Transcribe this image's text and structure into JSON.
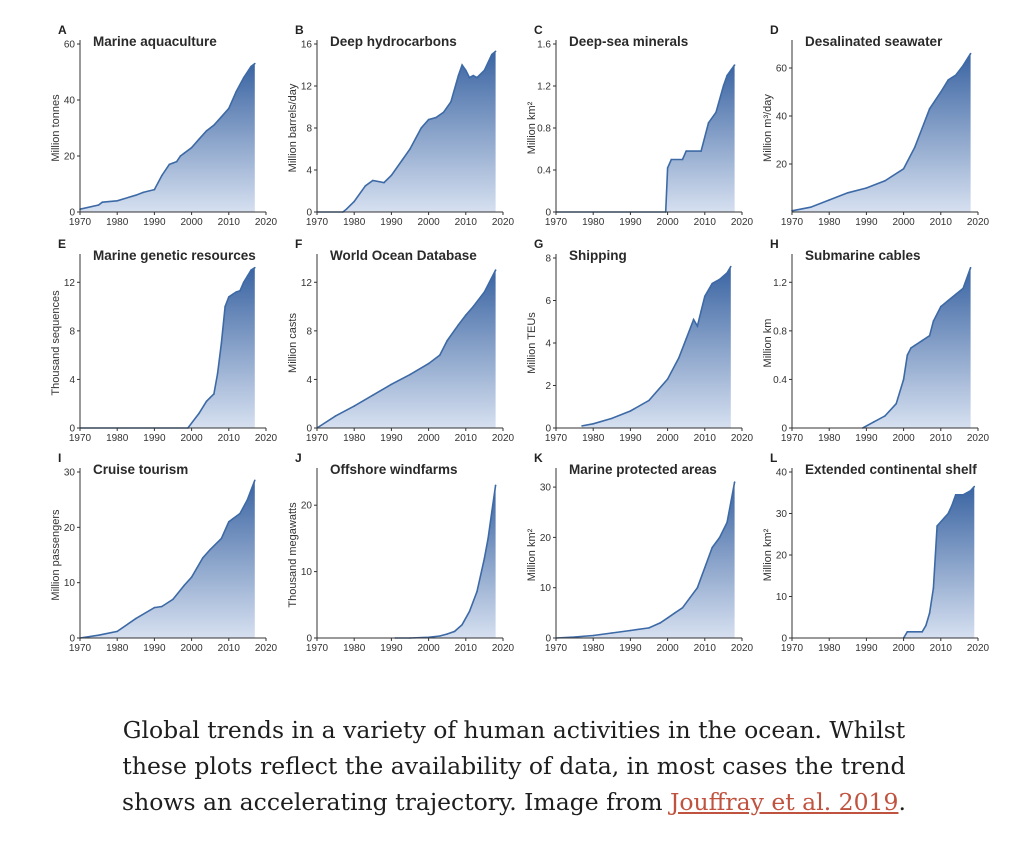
{
  "accent_color": "#3d6aa6",
  "fill_top_color": "#3a64a2",
  "fill_bottom_color": "#d6e0f0",
  "caption": {
    "line1": "Global trends in a variety of human activities in the ocean. Whilst",
    "line2": "these plots reflect the availability of data, in most cases the trend",
    "line3_prefix": "shows an accelerating trajectory. Image from ",
    "link_text": "Jouffray et al. 2019",
    "line3_suffix": "."
  },
  "chart_data": [
    {
      "type": "area",
      "letter": "A",
      "title": "Marine aquaculture",
      "ylabel": "Million tonnes",
      "xlim": [
        1970,
        2020
      ],
      "ylim": [
        0,
        60
      ],
      "yticks": [
        0,
        20,
        40,
        60
      ],
      "x": [
        1970,
        1975,
        1976,
        1980,
        1985,
        1987,
        1990,
        1992,
        1994,
        1995,
        1996,
        1997,
        1998,
        2000,
        2002,
        2004,
        2006,
        2008,
        2010,
        2012,
        2014,
        2016,
        2017
      ],
      "y": [
        1,
        2.5,
        3.5,
        4,
        6,
        7,
        8,
        13,
        17,
        17.5,
        18,
        20,
        21,
        23,
        26,
        29,
        31,
        34,
        37,
        43,
        48,
        52,
        53
      ]
    },
    {
      "type": "area",
      "letter": "B",
      "title": "Deep hydrocarbons",
      "ylabel": "Million barrels/day",
      "xlim": [
        1970,
        2020
      ],
      "ylim": [
        0,
        16
      ],
      "yticks": [
        0,
        4,
        8,
        12,
        16
      ],
      "x": [
        1970,
        1977,
        1978,
        1980,
        1983,
        1985,
        1988,
        1990,
        1993,
        1995,
        1998,
        2000,
        2002,
        2004,
        2006,
        2008,
        2009,
        2010,
        2011,
        2012,
        2013,
        2015,
        2017,
        2018
      ],
      "y": [
        0,
        0,
        0.3,
        1,
        2.5,
        3,
        2.8,
        3.5,
        5,
        6,
        8,
        8.8,
        9,
        9.5,
        10.5,
        13,
        14,
        13.5,
        12.8,
        13,
        12.8,
        13.5,
        15,
        15.3
      ]
    },
    {
      "type": "area",
      "letter": "C",
      "title": "Deep-sea minerals",
      "ylabel": "Million km²",
      "xlim": [
        1970,
        2020
      ],
      "ylim": [
        0,
        1.6
      ],
      "yticks": [
        0,
        0.4,
        0.8,
        1.2,
        1.6
      ],
      "x": [
        1970,
        1999.5,
        2000,
        2001,
        2004,
        2005,
        2009,
        2011,
        2013,
        2015,
        2016,
        2017,
        2018
      ],
      "y": [
        0,
        0,
        0.42,
        0.5,
        0.5,
        0.58,
        0.58,
        0.85,
        0.95,
        1.2,
        1.3,
        1.35,
        1.4
      ]
    },
    {
      "type": "area",
      "letter": "D",
      "title": "Desalinated seawater",
      "ylabel": "Million m³/day",
      "xlim": [
        1970,
        2020
      ],
      "ylim": [
        0,
        70
      ],
      "yticks": [
        20,
        40,
        60
      ],
      "x": [
        1970,
        1975,
        1980,
        1985,
        1990,
        1995,
        2000,
        2003,
        2005,
        2007,
        2010,
        2012,
        2014,
        2016,
        2018
      ],
      "y": [
        0.5,
        2,
        5,
        8,
        10,
        13,
        18,
        27,
        35,
        43,
        50,
        55,
        57,
        61,
        66
      ]
    },
    {
      "type": "area",
      "letter": "E",
      "title": "Marine genetic resources",
      "ylabel": "Thousand sequences",
      "xlim": [
        1970,
        2020
      ],
      "ylim": [
        0,
        14
      ],
      "yticks": [
        0,
        4,
        8,
        12
      ],
      "x": [
        1970,
        1999,
        2002,
        2004,
        2005,
        2006,
        2007,
        2008,
        2009,
        2010,
        2011,
        2012,
        2013,
        2014,
        2015,
        2016,
        2017
      ],
      "y": [
        0,
        0,
        1.2,
        2.2,
        2.5,
        2.8,
        4.5,
        7,
        10,
        10.8,
        11,
        11.2,
        11.3,
        12,
        12.5,
        13,
        13.2
      ]
    },
    {
      "type": "area",
      "letter": "F",
      "title": "World Ocean Database",
      "ylabel": "Million casts",
      "xlim": [
        1970,
        2020
      ],
      "ylim": [
        0,
        14
      ],
      "yticks": [
        0,
        4,
        8,
        12
      ],
      "x": [
        1970,
        1975,
        1980,
        1985,
        1990,
        1995,
        2000,
        2003,
        2005,
        2008,
        2010,
        2012,
        2015,
        2018
      ],
      "y": [
        0,
        1,
        1.8,
        2.7,
        3.6,
        4.4,
        5.3,
        6,
        7.2,
        8.5,
        9.3,
        10,
        11.2,
        13
      ]
    },
    {
      "type": "area",
      "letter": "G",
      "title": "Shipping",
      "ylabel": "Million TEUs",
      "xlim": [
        1970,
        2020
      ],
      "ylim": [
        0,
        8
      ],
      "yticks": [
        0,
        2,
        4,
        6,
        8
      ],
      "x": [
        1977,
        1980,
        1985,
        1990,
        1995,
        2000,
        2003,
        2005,
        2007,
        2008,
        2009,
        2010,
        2012,
        2014,
        2016,
        2017
      ],
      "y": [
        0.1,
        0.2,
        0.45,
        0.8,
        1.3,
        2.3,
        3.3,
        4.2,
        5.1,
        4.8,
        5.5,
        6.2,
        6.8,
        7.0,
        7.3,
        7.6
      ]
    },
    {
      "type": "area",
      "letter": "H",
      "title": "Submarine cables",
      "ylabel": "Million km",
      "xlim": [
        1970,
        2020
      ],
      "ylim": [
        0,
        1.4
      ],
      "yticks": [
        0,
        0.4,
        0.8,
        1.2
      ],
      "x": [
        1989,
        1992,
        1995,
        1998,
        2000,
        2001,
        2002,
        2003,
        2005,
        2007,
        2008,
        2010,
        2012,
        2014,
        2016,
        2018
      ],
      "y": [
        0,
        0.05,
        0.1,
        0.2,
        0.4,
        0.6,
        0.66,
        0.68,
        0.72,
        0.76,
        0.88,
        1.0,
        1.05,
        1.1,
        1.15,
        1.32
      ]
    },
    {
      "type": "area",
      "letter": "I",
      "title": "Cruise tourism",
      "ylabel": "Million passengers",
      "xlim": [
        1970,
        2020
      ],
      "ylim": [
        0,
        30
      ],
      "yticks": [
        0,
        10,
        20,
        30
      ],
      "x": [
        1970,
        1975,
        1980,
        1985,
        1990,
        1992,
        1995,
        1998,
        2000,
        2003,
        2005,
        2008,
        2010,
        2011,
        2013,
        2015,
        2017
      ],
      "y": [
        0,
        0.5,
        1.2,
        3.5,
        5.5,
        5.7,
        7,
        9.5,
        11,
        14.5,
        16,
        18,
        21,
        21.5,
        22.5,
        25,
        28.5
      ]
    },
    {
      "type": "area",
      "letter": "J",
      "title": "Offshore windfarms",
      "ylabel": "Thousand megawatts",
      "xlim": [
        1970,
        2020
      ],
      "ylim": [
        0,
        25
      ],
      "yticks": [
        0,
        10,
        20
      ],
      "x": [
        1991,
        1995,
        2000,
        2003,
        2005,
        2007,
        2009,
        2011,
        2013,
        2015,
        2016,
        2017,
        2018
      ],
      "y": [
        0,
        0,
        0.1,
        0.3,
        0.6,
        1,
        2,
        4,
        7,
        12,
        15,
        19,
        23
      ]
    },
    {
      "type": "area",
      "letter": "K",
      "title": "Marine protected areas",
      "ylabel": "Million km²",
      "xlim": [
        1970,
        2020
      ],
      "ylim": [
        0,
        33
      ],
      "yticks": [
        0,
        10,
        20,
        30
      ],
      "x": [
        1970,
        1975,
        1980,
        1985,
        1990,
        1995,
        1998,
        2000,
        2002,
        2004,
        2006,
        2008,
        2010,
        2012,
        2014,
        2016,
        2018
      ],
      "y": [
        0,
        0.2,
        0.5,
        1,
        1.5,
        2,
        3,
        4,
        5,
        6,
        8,
        10,
        14,
        18,
        20,
        23,
        31
      ]
    },
    {
      "type": "area",
      "letter": "L",
      "title": "Extended continental shelf",
      "ylabel": "Million km²",
      "xlim": [
        1970,
        2020
      ],
      "ylim": [
        0,
        40
      ],
      "yticks": [
        0,
        10,
        20,
        30,
        40
      ],
      "x": [
        2000,
        2001,
        2005,
        2006,
        2007,
        2008,
        2009,
        2011,
        2012,
        2013,
        2014,
        2015,
        2016,
        2017,
        2018,
        2019
      ],
      "y": [
        0,
        1.5,
        1.5,
        3,
        6,
        12,
        27,
        29,
        30,
        32,
        34.5,
        34.5,
        34.5,
        35,
        35.5,
        36.5
      ]
    }
  ]
}
